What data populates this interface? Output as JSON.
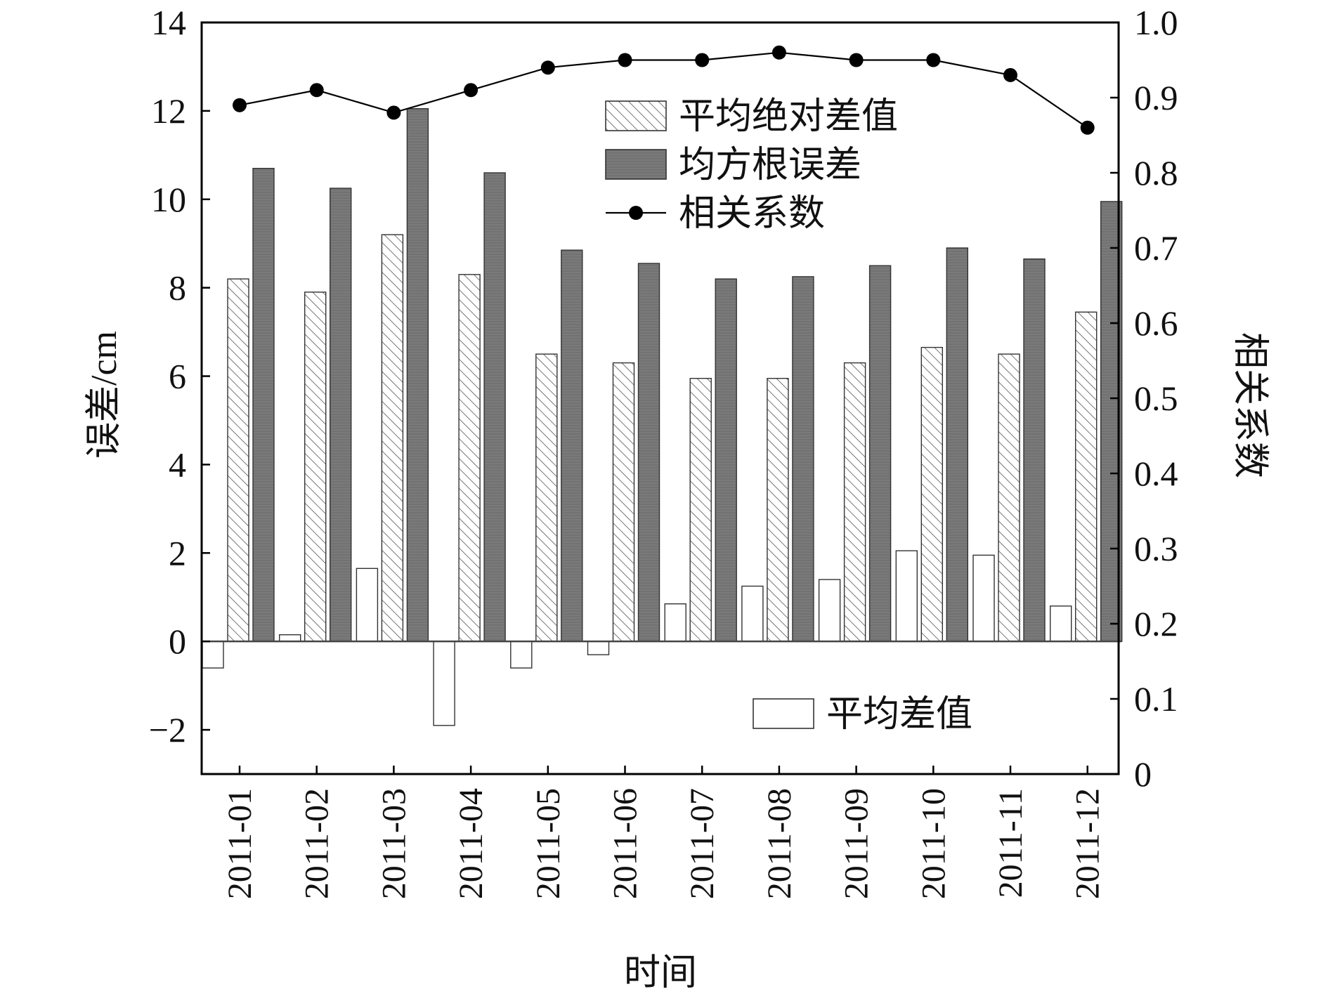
{
  "chart_data": {
    "type": "bar",
    "xlabel": "时间",
    "ylabel_left": "误差/cm",
    "ylabel_right": "相关系数",
    "ylim_left": [
      -3,
      14
    ],
    "yticks_left": [
      "−2",
      "0",
      "2",
      "4",
      "6",
      "8",
      "10",
      "12",
      "14"
    ],
    "yticks_left_values": [
      -2,
      0,
      2,
      4,
      6,
      8,
      10,
      12,
      14
    ],
    "ylim_right": [
      0,
      1.0
    ],
    "yticks_right": [
      "0",
      "0.1",
      "0.2",
      "0.3",
      "0.4",
      "0.5",
      "0.6",
      "0.7",
      "0.8",
      "0.9",
      "1.0"
    ],
    "yticks_right_values": [
      0,
      0.1,
      0.2,
      0.3,
      0.4,
      0.5,
      0.6,
      0.7,
      0.8,
      0.9,
      1.0
    ],
    "categories": [
      "2011-01",
      "2011-02",
      "2011-03",
      "2011-04",
      "2011-05",
      "2011-06",
      "2011-07",
      "2011-08",
      "2011-09",
      "2011-10",
      "2011-11",
      "2011-12"
    ],
    "series": [
      {
        "name": "平均差值",
        "type": "bar",
        "axis": "left",
        "style": "open",
        "values": [
          -0.6,
          0.15,
          1.65,
          -1.9,
          -0.6,
          -0.3,
          0.85,
          1.25,
          1.4,
          2.05,
          1.95,
          0.8
        ]
      },
      {
        "name": "平均绝对差值",
        "type": "bar",
        "axis": "left",
        "style": "hatched",
        "values": [
          8.2,
          7.9,
          9.2,
          8.3,
          6.5,
          6.3,
          5.95,
          5.95,
          6.3,
          6.65,
          6.5,
          7.45
        ]
      },
      {
        "name": "均方根误差",
        "type": "bar",
        "axis": "left",
        "style": "dark",
        "values": [
          10.7,
          10.25,
          12.05,
          10.6,
          8.85,
          8.55,
          8.2,
          8.25,
          8.5,
          8.9,
          8.65,
          9.95
        ]
      },
      {
        "name": "相关系数",
        "type": "line",
        "axis": "right",
        "style": "line-dot",
        "values": [
          0.89,
          0.91,
          0.88,
          0.91,
          0.94,
          0.95,
          0.95,
          0.96,
          0.95,
          0.95,
          0.93,
          0.86
        ]
      }
    ],
    "legend": [
      "平均绝对差值",
      "均方根误差",
      "相关系数",
      "平均差值"
    ],
    "grid": false,
    "colors": {
      "dark_bar": "#777777",
      "line": "#000000",
      "axis": "#000000"
    }
  }
}
